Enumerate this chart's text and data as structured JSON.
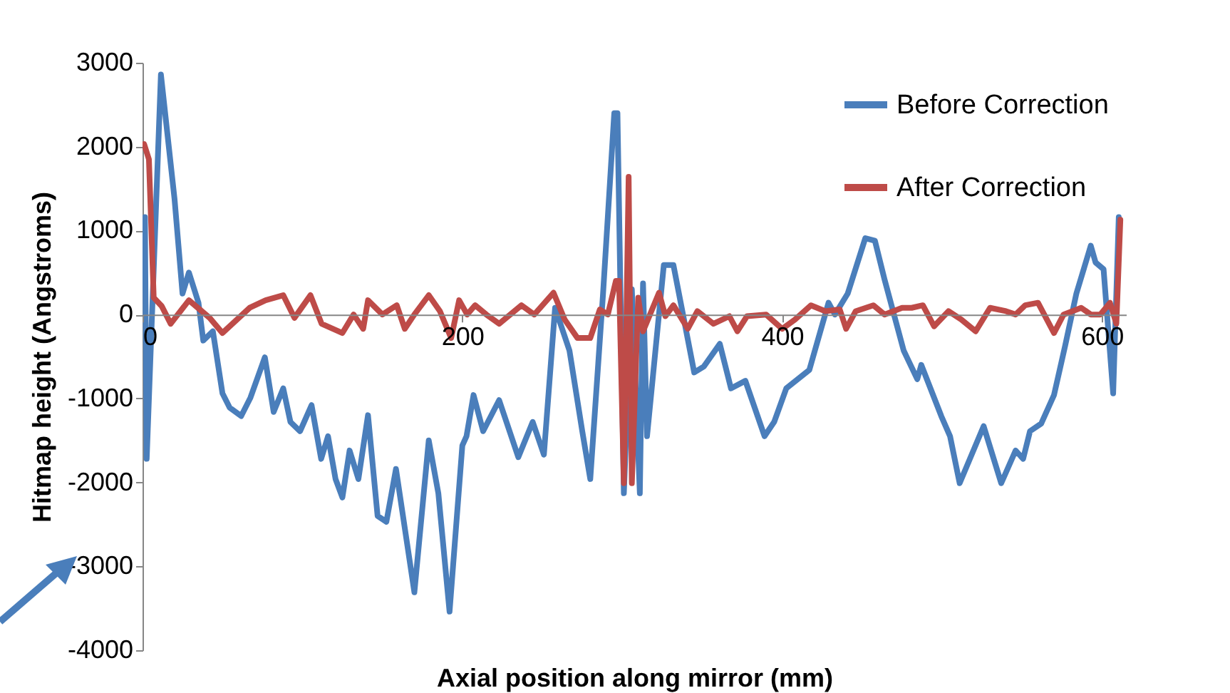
{
  "chart_data": {
    "type": "line",
    "xlabel": "Axial position along mirror (mm)",
    "ylabel": "Hitmap height (Angstroms)",
    "xlim": [
      0,
      615
    ],
    "xticks": [
      0,
      200,
      400,
      600
    ],
    "ylim": [
      -4000,
      3000
    ],
    "yticks": [
      -4000,
      -3000,
      -2000,
      -1000,
      0,
      1000,
      2000,
      3000
    ],
    "grid": false,
    "legend": "top right",
    "line_style": "solid",
    "marker": "none",
    "series": [
      {
        "name": "Before Correction",
        "color": "#4a7ebb",
        "x": [
          1.5,
          2.6,
          11.5,
          20,
          25,
          29,
          35,
          38,
          44,
          50,
          54.5,
          61.7,
          67.5,
          76.5,
          82,
          88,
          92.5,
          98.5,
          105.7,
          111.7,
          116,
          120.7,
          125,
          129.5,
          135,
          141,
          147,
          152.5,
          158.5,
          170,
          179,
          185,
          192,
          200,
          202.6,
          207,
          213,
          223,
          235,
          244,
          251,
          258,
          267,
          275,
          280,
          288,
          295,
          297,
          301,
          306,
          311,
          313,
          315.5,
          326,
          332,
          345,
          351,
          361,
          368,
          377,
          389,
          395,
          402.6,
          417,
          429,
          433,
          441,
          452,
          458,
          464,
          476,
          484.5,
          487,
          499.5,
          505,
          511,
          526,
          537,
          546,
          550.7,
          555,
          562,
          570,
          577,
          584,
          593,
          596,
          601,
          607,
          610.5
        ],
        "values": [
          1160,
          -1720,
          2860,
          1380,
          250,
          500,
          140,
          -310,
          -200,
          -940,
          -1110,
          -1210,
          -990,
          -510,
          -1160,
          -880,
          -1280,
          -1390,
          -1080,
          -1720,
          -1450,
          -1960,
          -2180,
          -1620,
          -1960,
          -1200,
          -2400,
          -2470,
          -1840,
          -3310,
          -1500,
          -2130,
          -3540,
          -1560,
          -1450,
          -960,
          -1390,
          -1020,
          -1700,
          -1280,
          -1670,
          80,
          -430,
          -1390,
          -1960,
          250,
          2400,
          2400,
          -2130,
          300,
          -2130,
          370,
          -1450,
          590,
          590,
          -690,
          -620,
          -350,
          -880,
          -790,
          -1450,
          -1280,
          -880,
          -660,
          140,
          0,
          250,
          910,
          880,
          420,
          -430,
          -770,
          -600,
          -1210,
          -1450,
          -2010,
          -1330,
          -2010,
          -1620,
          -1720,
          -1390,
          -1300,
          -960,
          -370,
          250,
          820,
          620,
          540,
          -940,
          1160
        ]
      },
      {
        "name": "After Correction",
        "color": "#be4b48",
        "x": [
          1,
          4,
          7,
          12,
          17.6,
          29,
          42,
          50,
          67,
          77,
          88,
          95,
          105,
          112,
          125,
          132,
          138,
          141,
          150,
          159,
          164,
          170,
          179,
          186,
          193,
          198,
          203,
          208,
          215,
          223,
          230,
          237,
          245,
          257,
          264,
          272,
          280,
          286,
          291,
          296,
          298,
          301,
          304,
          306,
          310,
          313,
          323,
          327,
          332,
          341,
          347,
          357,
          367,
          372,
          378,
          390,
          400,
          408,
          418,
          427,
          436,
          440,
          446,
          457,
          464,
          475,
          481,
          488,
          495,
          504,
          512,
          521,
          530,
          540,
          546,
          552,
          560,
          570,
          576,
          587,
          593,
          599,
          605,
          609,
          611.5
        ],
        "values": [
          2030,
          1850,
          200,
          100,
          -110,
          170,
          -40,
          -220,
          80,
          170,
          230,
          -40,
          230,
          -110,
          -220,
          0,
          -170,
          170,
          0,
          110,
          -170,
          0,
          230,
          40,
          -280,
          170,
          0,
          110,
          0,
          -110,
          0,
          110,
          0,
          260,
          -60,
          -280,
          -280,
          60,
          0,
          400,
          400,
          -2010,
          1640,
          -2010,
          200,
          -200,
          260,
          -20,
          110,
          -170,
          40,
          -110,
          -20,
          -200,
          -20,
          0,
          -170,
          -60,
          110,
          40,
          60,
          -170,
          40,
          110,
          0,
          80,
          80,
          110,
          -140,
          40,
          -60,
          -200,
          80,
          40,
          0,
          110,
          140,
          -220,
          0,
          80,
          0,
          0,
          140,
          -110,
          1130
        ]
      }
    ]
  }
}
